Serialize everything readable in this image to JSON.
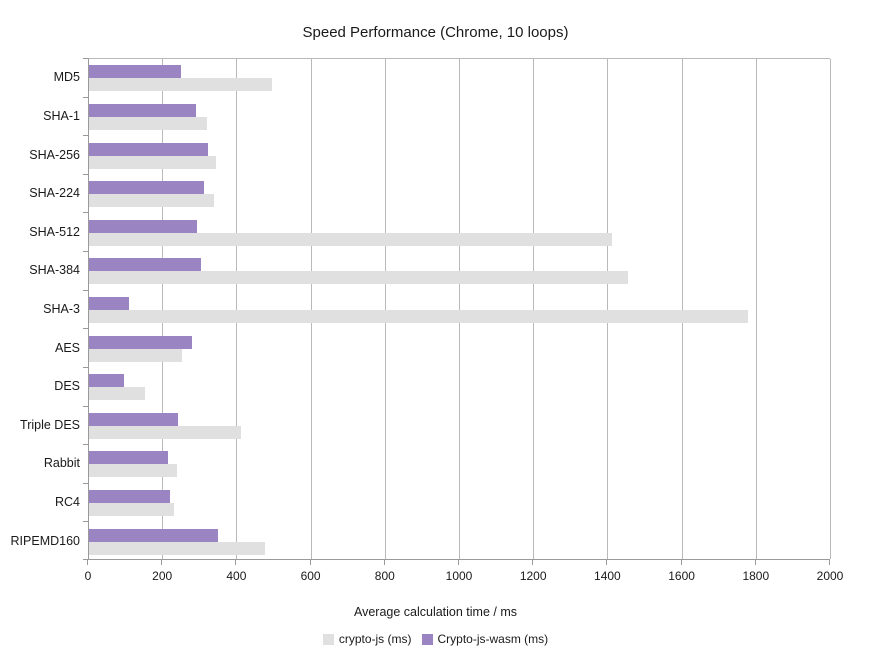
{
  "title": "Speed Performance (Chrome, 10 loops)",
  "chart_data": {
    "type": "bar",
    "orientation": "horizontal",
    "title": "Speed Performance (Chrome, 10 loops)",
    "xlabel": "Average calculation time / ms",
    "ylabel": "",
    "xlim": [
      0,
      2000
    ],
    "xticks": [
      0,
      200,
      400,
      600,
      800,
      1000,
      1200,
      1400,
      1600,
      1800,
      2000
    ],
    "grid": true,
    "legend_position": "bottom",
    "categories": [
      "MD5",
      "SHA-1",
      "SHA-256",
      "SHA-224",
      "SHA-512",
      "SHA-384",
      "SHA-3",
      "AES",
      "DES",
      "Triple DES",
      "Rabbit",
      "RC4",
      "RIPEMD160"
    ],
    "series": [
      {
        "name": "crypto-js (ms)",
        "color": "#e0e0e0",
        "values": [
          493,
          318,
          343,
          337,
          1411,
          1452,
          1776,
          251,
          150,
          410,
          236,
          230,
          474
        ]
      },
      {
        "name": "Crypto-js-wasm (ms)",
        "color": "#9a85c2",
        "values": [
          248,
          289,
          320,
          311,
          290,
          302,
          108,
          278,
          94,
          240,
          214,
          218,
          347
        ]
      }
    ]
  },
  "colors": {
    "gridline": "#b9b9b9",
    "axis": "#9a9a9a",
    "text": "#1a1a1a"
  }
}
